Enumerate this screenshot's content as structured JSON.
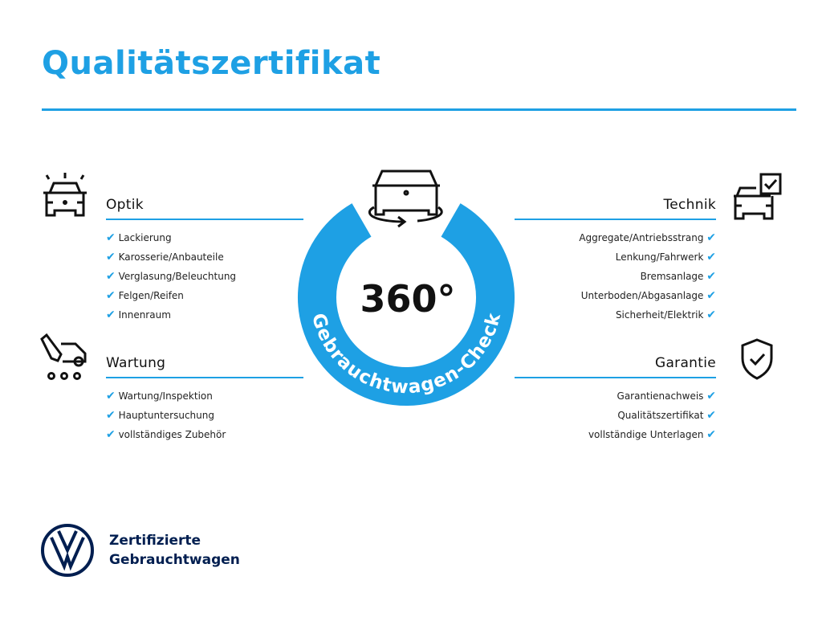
{
  "title": "Qualitätszertifikat",
  "center": {
    "number": "360°",
    "ring_text": "Gebrauchtwagen-Check"
  },
  "check": "✔",
  "sections": {
    "optik": {
      "heading": "Optik",
      "items": [
        "Lackierung",
        "Karosserie/Anbauteile",
        "Verglasung/Beleuchtung",
        "Felgen/Reifen",
        "Innenraum"
      ]
    },
    "wartung": {
      "heading": "Wartung",
      "items": [
        "Wartung/Inspektion",
        "Hauptuntersuchung",
        "vollständiges Zubehör"
      ]
    },
    "technik": {
      "heading": "Technik",
      "items": [
        "Aggregate/Antriebsstrang",
        "Lenkung/Fahrwerk",
        "Bremsanlage",
        "Unterboden/Abgasanlage",
        "Sicherheit/Elektrik"
      ]
    },
    "garantie": {
      "heading": "Garantie",
      "items": [
        "Garantienachweis",
        "Qualitätszertifikat",
        "vollständige Unterlagen"
      ]
    }
  },
  "brand": {
    "line1": "Zertifizierte",
    "line2": "Gebrauchtwagen",
    "logo": "VW"
  },
  "colors": {
    "accent": "#1ea0e4",
    "brand": "#001e50"
  }
}
